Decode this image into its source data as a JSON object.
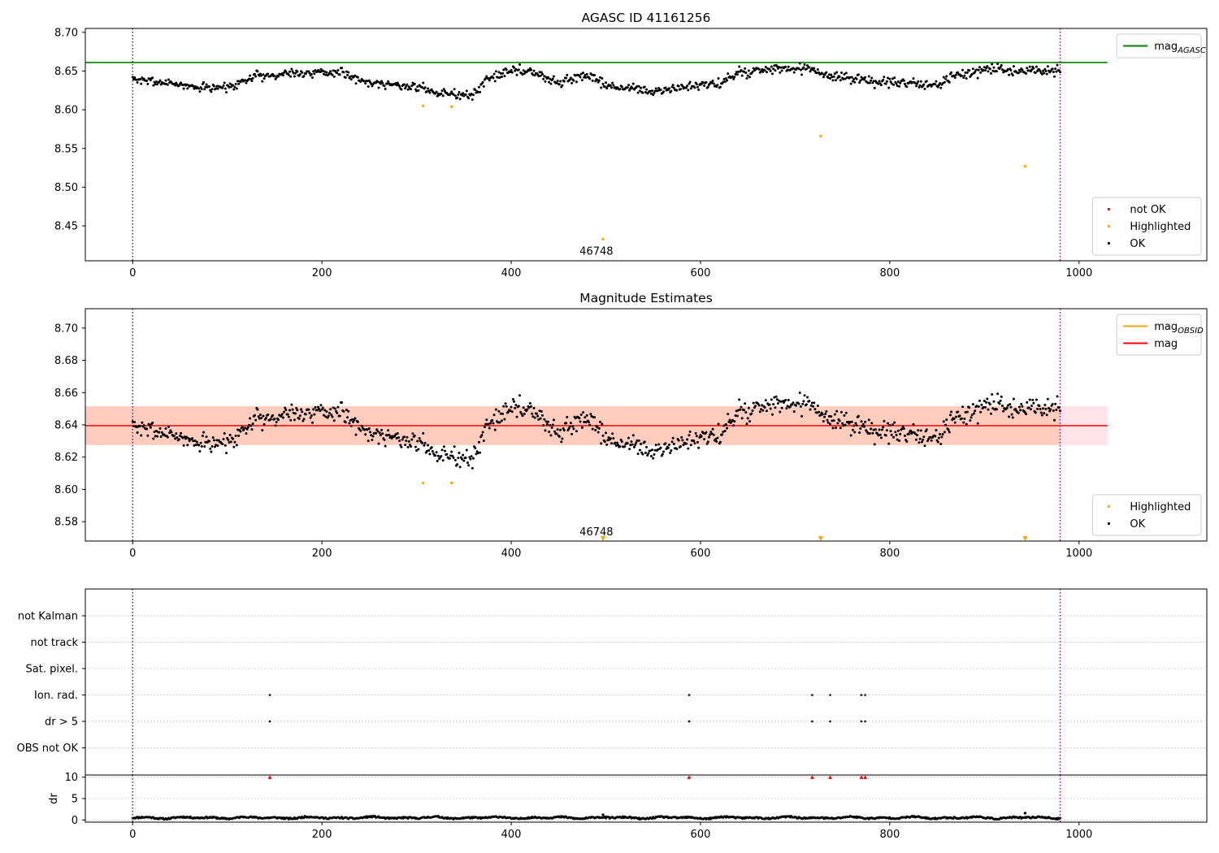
{
  "chart_data": [
    {
      "type": "scatter",
      "title": "AGASC ID 41161256",
      "xlim": [
        -50,
        1135
      ],
      "ylim": [
        8.405,
        8.705
      ],
      "xticks": [
        0,
        200,
        400,
        600,
        800,
        1000
      ],
      "yticks": [
        8.45,
        8.5,
        8.55,
        8.6,
        8.65,
        8.7
      ],
      "y_tick_decimals": 2,
      "grid": false,
      "legends": [
        {
          "placement": "upper right",
          "entries": [
            {
              "label": "mag",
              "subscript": "AGASC",
              "marker": "line",
              "color": "#008000"
            }
          ]
        },
        {
          "placement": "lower right",
          "entries": [
            {
              "label": "not OK",
              "marker": "dot",
              "color": "#ff0000"
            },
            {
              "label": "Highlighted",
              "marker": "dot",
              "color": "#ffa500"
            },
            {
              "label": "OK",
              "marker": "dot",
              "color": "#000000"
            }
          ]
        }
      ],
      "hlines": [
        {
          "y": 8.661,
          "x_range": [
            -50,
            1030
          ],
          "color": "#008000",
          "name": "mag_AGASC"
        }
      ],
      "vlines": [
        {
          "x": 0,
          "color": "#800080",
          "style": "dotted"
        },
        {
          "x": 980,
          "color": "#800080",
          "style": "dotted"
        }
      ],
      "series": [
        {
          "name": "OK",
          "color": "#000000",
          "model": "mag_mag_trace",
          "seed": 7,
          "y_center": 8.64,
          "noise": 0.0065
        },
        {
          "name": "Highlighted",
          "color": "#ffa500",
          "x": [
            307,
            337,
            497,
            727,
            943
          ],
          "y": [
            8.605,
            8.604,
            8.433,
            8.566,
            8.527
          ]
        }
      ],
      "annotations": [
        {
          "text": "46748",
          "x": 490,
          "y": 8.417
        }
      ]
    },
    {
      "type": "scatter",
      "title": "Magnitude Estimates",
      "xlim": [
        -50,
        1135
      ],
      "ylim": [
        8.568,
        8.712
      ],
      "xticks": [
        0,
        200,
        400,
        600,
        800,
        1000
      ],
      "yticks": [
        8.58,
        8.6,
        8.62,
        8.64,
        8.66,
        8.68,
        8.7
      ],
      "y_tick_decimals": 2,
      "grid": false,
      "legends": [
        {
          "placement": "upper right",
          "entries": [
            {
              "label": "mag",
              "subscript": "OBSID",
              "marker": "line",
              "color": "#ffa500"
            },
            {
              "label": "mag",
              "marker": "line",
              "color": "#ff0000"
            }
          ]
        },
        {
          "placement": "lower right",
          "entries": [
            {
              "label": "Highlighted",
              "marker": "dot",
              "color": "#ffa500"
            },
            {
              "label": "OK",
              "marker": "dot",
              "color": "#000000"
            }
          ]
        }
      ],
      "bands": [
        {
          "y_range": [
            8.6275,
            8.6515
          ],
          "x_range": [
            -50,
            1030
          ],
          "color": "#ffc0cb",
          "opacity": 0.45
        },
        {
          "y_range": [
            8.6275,
            8.6515
          ],
          "x_range": [
            -50,
            980
          ],
          "color": "#ffa070",
          "opacity": 0.35
        }
      ],
      "hlines": [
        {
          "y": 8.6395,
          "x_range": [
            -50,
            1030
          ],
          "color": "#ff0000",
          "name": "mag"
        }
      ],
      "vlines": [
        {
          "x": 0,
          "color": "#800080",
          "style": "dotted"
        },
        {
          "x": 980,
          "color": "#800080",
          "style": "dotted"
        }
      ],
      "series": [
        {
          "name": "OK",
          "color": "#000000",
          "model": "mag_mag_trace",
          "seed": 7,
          "y_center": 8.64,
          "noise": 0.0065
        },
        {
          "name": "Highlighted",
          "color": "#ffa500",
          "x": [
            307,
            337
          ],
          "y": [
            8.604,
            8.604
          ]
        },
        {
          "name": "Highlighted (below range)",
          "color": "#ffa500",
          "marker": "down-triangle",
          "x": [
            497,
            727,
            943
          ],
          "y": [
            8.5695,
            8.5695,
            8.5695
          ]
        }
      ],
      "annotations": [
        {
          "text": "46748",
          "x": 490,
          "y": 8.5735
        }
      ]
    },
    {
      "type": "scatter",
      "title": "",
      "xlim": [
        -50,
        1135
      ],
      "categories": [
        "not Kalman",
        "not track",
        "Sat. pixel.",
        "Ion. rad.",
        "dr > 5",
        "OBS not OK"
      ],
      "flag_x": {
        "not Kalman": [],
        "not track": [],
        "Sat. pixel.": [],
        "Ion. rad.": [
          145,
          588,
          718,
          737,
          770,
          774
        ],
        "dr > 5": [
          145,
          588,
          718,
          737,
          770,
          774
        ],
        "OBS not OK": []
      },
      "grid": "dotted horizontal",
      "vlines": [
        {
          "x": 0,
          "color": "#800080",
          "style": "dotted"
        },
        {
          "x": 980,
          "color": "#800080",
          "style": "dotted"
        }
      ]
    },
    {
      "type": "scatter",
      "ylabel": "dr",
      "xlim": [
        -50,
        1135
      ],
      "ylim": [
        -0.5,
        10.5
      ],
      "xticks": [
        0,
        200,
        400,
        600,
        800,
        1000
      ],
      "yticks": [
        0,
        5,
        10
      ],
      "y_tick_decimals": 0,
      "grid": "dotted horizontal",
      "vlines": [
        {
          "x": 0,
          "color": "#800080",
          "style": "dotted"
        },
        {
          "x": 980,
          "color": "#800080",
          "style": "dotted"
        }
      ],
      "series": [
        {
          "name": "dr",
          "color": "#000000",
          "model": "dr_trace",
          "seed": 11
        },
        {
          "name": "dr > 5 (clipped)",
          "color": "#ff0000",
          "marker": "up-triangle",
          "x": [
            145,
            588,
            718,
            737,
            770,
            774
          ],
          "y": [
            10,
            10,
            10,
            10,
            10,
            10
          ]
        },
        {
          "name": "dr extra",
          "color": "#000000",
          "x": [
            497,
            943
          ],
          "y": [
            1.2,
            1.6
          ]
        }
      ]
    }
  ]
}
